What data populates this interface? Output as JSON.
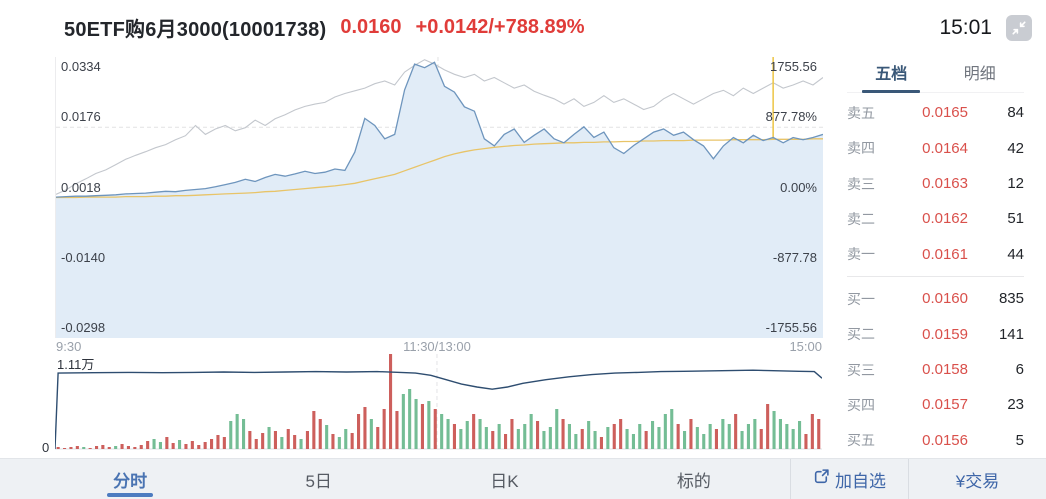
{
  "header": {
    "title": "50ETF购6月3000(10001738)",
    "price": "0.0160",
    "change": "+0.0142/+788.89%",
    "time": "15:01"
  },
  "colors": {
    "header_red": "#e03c39",
    "book_red": "#d9504b",
    "link_blue": "#3e66a8",
    "active_tab_blue": "#4a74b2",
    "book_tab_dark": "#3a5878"
  },
  "order_book": {
    "tabs": [
      {
        "label": "五档"
      },
      {
        "label": "明细"
      }
    ],
    "sell_rows": [
      {
        "label": "卖五",
        "price": "0.0165",
        "qty": "84"
      },
      {
        "label": "卖四",
        "price": "0.0164",
        "qty": "42"
      },
      {
        "label": "卖三",
        "price": "0.0163",
        "qty": "12"
      },
      {
        "label": "卖二",
        "price": "0.0162",
        "qty": "51"
      },
      {
        "label": "卖一",
        "price": "0.0161",
        "qty": "44"
      }
    ],
    "buy_rows": [
      {
        "label": "买一",
        "price": "0.0160",
        "qty": "835"
      },
      {
        "label": "买二",
        "price": "0.0159",
        "qty": "141"
      },
      {
        "label": "买三",
        "price": "0.0158",
        "qty": "6"
      },
      {
        "label": "买四",
        "price": "0.0157",
        "qty": "23"
      },
      {
        "label": "买五",
        "price": "0.0156",
        "qty": "5"
      }
    ]
  },
  "bottom_bar": {
    "tabs": [
      "分时",
      "5日",
      "日K",
      "标的"
    ],
    "add_watchlist": "加自选",
    "trade": "¥交易"
  },
  "chart_data": [
    {
      "type": "line",
      "title": "分时 intraday chart",
      "x_ticks": [
        "9:30",
        "11:30/13:00",
        "15:00"
      ],
      "left_axis": [
        "0.0334",
        "0.0176",
        "0.0018",
        "-0.0140",
        "-0.0298"
      ],
      "right_axis": [
        "1755.56",
        "877.78%",
        "0.00%",
        "-877.78",
        "-1755.56"
      ],
      "ylim": [
        -0.0298,
        0.0334
      ],
      "mid_tick_frac": 0.498,
      "grid": true,
      "marker_line": {
        "x_frac": 0.935,
        "color": "#edc84f"
      },
      "series": [
        {
          "name": "option-price",
          "color": "#6e95bd",
          "fill": "#e1ecf7",
          "values": [
            0.0019,
            0.002,
            0.0021,
            0.0021,
            0.0022,
            0.0023,
            0.0024,
            0.0026,
            0.0027,
            0.0028,
            0.003,
            0.0032,
            0.0031,
            0.0034,
            0.0036,
            0.0038,
            0.0042,
            0.0047,
            0.0052,
            0.0059,
            0.0054,
            0.0063,
            0.007,
            0.0066,
            0.0071,
            0.0077,
            0.0072,
            0.0075,
            0.0082,
            0.0079,
            0.012,
            0.0196,
            0.018,
            0.015,
            0.016,
            0.026,
            0.0318,
            0.031,
            0.0322,
            0.0268,
            0.0255,
            0.0222,
            0.0212,
            0.015,
            0.0134,
            0.016,
            0.0172,
            0.0142,
            0.0158,
            0.0172,
            0.015,
            0.0141,
            0.016,
            0.0177,
            0.0153,
            0.0165,
            0.013,
            0.0117,
            0.0135,
            0.015,
            0.0165,
            0.0172,
            0.0158,
            0.0165,
            0.0148,
            0.0134,
            0.0105,
            0.0134,
            0.0153,
            0.0141,
            0.0158,
            0.0146,
            0.0153,
            0.0141,
            0.0153,
            0.0148,
            0.0153,
            0.016
          ]
        },
        {
          "name": "average-price",
          "color": "#e8c468",
          "values": [
            0.0018,
            0.0018,
            0.0018,
            0.0019,
            0.0019,
            0.0019,
            0.0019,
            0.002,
            0.002,
            0.002,
            0.0021,
            0.0021,
            0.0022,
            0.0022,
            0.0023,
            0.0024,
            0.0025,
            0.0026,
            0.0027,
            0.0028,
            0.0029,
            0.0031,
            0.0032,
            0.0034,
            0.0036,
            0.0038,
            0.004,
            0.0042,
            0.0044,
            0.0047,
            0.005,
            0.0055,
            0.006,
            0.0065,
            0.007,
            0.0078,
            0.0086,
            0.0094,
            0.0102,
            0.011,
            0.0116,
            0.0121,
            0.0125,
            0.0128,
            0.0131,
            0.0133,
            0.0135,
            0.0136,
            0.0138,
            0.0139,
            0.014,
            0.0141,
            0.0141,
            0.0142,
            0.0142,
            0.0143,
            0.0143,
            0.0144,
            0.0144,
            0.0145,
            0.0145,
            0.0146,
            0.0146,
            0.0146,
            0.0147,
            0.0147,
            0.0147,
            0.0147,
            0.0148,
            0.0148,
            0.0148,
            0.0148,
            0.0149,
            0.0149,
            0.0149,
            0.0149,
            0.015,
            0.015
          ]
        },
        {
          "name": "underlying",
          "color": "#c3c7cd",
          "values": [
            0.0025,
            0.0035,
            0.0049,
            0.006,
            0.0072,
            0.008,
            0.0092,
            0.0104,
            0.0113,
            0.0121,
            0.013,
            0.0137,
            0.0148,
            0.0157,
            0.018,
            0.016,
            0.0172,
            0.018,
            0.0168,
            0.0175,
            0.0192,
            0.018,
            0.0195,
            0.0204,
            0.0215,
            0.0223,
            0.0228,
            0.0232,
            0.0244,
            0.0252,
            0.0258,
            0.0264,
            0.0274,
            0.028,
            0.0271,
            0.03,
            0.0315,
            0.0328,
            0.0318,
            0.0305,
            0.0295,
            0.0288,
            0.0295,
            0.028,
            0.0288,
            0.0276,
            0.0264,
            0.0271,
            0.0257,
            0.0248,
            0.024,
            0.0228,
            0.024,
            0.0223,
            0.0232,
            0.0247,
            0.0232,
            0.024,
            0.0228,
            0.0216,
            0.0223,
            0.024,
            0.0252,
            0.024,
            0.0228,
            0.024,
            0.0252,
            0.0259,
            0.0247,
            0.0264,
            0.0252,
            0.0264,
            0.0276,
            0.0264,
            0.0271,
            0.028,
            0.0271,
            0.0288
          ]
        }
      ]
    },
    {
      "type": "bar",
      "title": "volume with open interest",
      "ymax_label": "1.11万",
      "ymin_label": "0",
      "mid_tick_frac": 0.498,
      "open_interest": {
        "color": "#2e4d70",
        "max": 1.11,
        "points": [
          [
            0,
            0
          ],
          [
            0.004,
            1.04
          ],
          [
            0.05,
            1.045
          ],
          [
            0.1,
            1.05
          ],
          [
            0.14,
            1.045
          ],
          [
            0.18,
            1.05
          ],
          [
            0.22,
            1.055
          ],
          [
            0.26,
            1.05
          ],
          [
            0.3,
            1.055
          ],
          [
            0.34,
            1.06
          ],
          [
            0.38,
            1.055
          ],
          [
            0.42,
            1.06
          ],
          [
            0.45,
            1.05
          ],
          [
            0.47,
            1.04
          ],
          [
            0.49,
            1.01
          ],
          [
            0.51,
            0.95
          ],
          [
            0.53,
            0.89
          ],
          [
            0.55,
            0.85
          ],
          [
            0.57,
            0.82
          ],
          [
            0.59,
            0.85
          ],
          [
            0.61,
            0.9
          ],
          [
            0.64,
            0.95
          ],
          [
            0.67,
            0.99
          ],
          [
            0.7,
            1.02
          ],
          [
            0.73,
            1.04
          ],
          [
            0.76,
            1.05
          ],
          [
            0.79,
            1.06
          ],
          [
            0.82,
            1.065
          ],
          [
            0.85,
            1.07
          ],
          [
            0.88,
            1.075
          ],
          [
            0.91,
            1.08
          ],
          [
            0.93,
            1.075
          ],
          [
            0.95,
            1.07
          ],
          [
            0.97,
            1.065
          ],
          [
            0.99,
            1.06
          ],
          [
            1.0,
            0.97
          ]
        ]
      },
      "bars": {
        "up_color": "#74bd95",
        "down_color": "#cd5f5c",
        "values": [
          [
            2,
            "r"
          ],
          [
            1,
            "r"
          ],
          [
            2,
            "r"
          ],
          [
            3,
            "r"
          ],
          [
            2,
            "g"
          ],
          [
            1,
            "r"
          ],
          [
            3,
            "r"
          ],
          [
            4,
            "r"
          ],
          [
            2,
            "r"
          ],
          [
            3,
            "g"
          ],
          [
            5,
            "r"
          ],
          [
            3,
            "r"
          ],
          [
            2,
            "r"
          ],
          [
            4,
            "r"
          ],
          [
            8,
            "r"
          ],
          [
            10,
            "g"
          ],
          [
            7,
            "g"
          ],
          [
            12,
            "r"
          ],
          [
            6,
            "r"
          ],
          [
            9,
            "g"
          ],
          [
            5,
            "r"
          ],
          [
            8,
            "r"
          ],
          [
            4,
            "r"
          ],
          [
            7,
            "r"
          ],
          [
            10,
            "r"
          ],
          [
            14,
            "r"
          ],
          [
            12,
            "r"
          ],
          [
            28,
            "g"
          ],
          [
            35,
            "g"
          ],
          [
            30,
            "g"
          ],
          [
            18,
            "r"
          ],
          [
            10,
            "r"
          ],
          [
            16,
            "r"
          ],
          [
            22,
            "g"
          ],
          [
            18,
            "r"
          ],
          [
            12,
            "g"
          ],
          [
            20,
            "r"
          ],
          [
            14,
            "r"
          ],
          [
            10,
            "g"
          ],
          [
            18,
            "r"
          ],
          [
            38,
            "r"
          ],
          [
            30,
            "r"
          ],
          [
            24,
            "g"
          ],
          [
            15,
            "r"
          ],
          [
            12,
            "g"
          ],
          [
            20,
            "g"
          ],
          [
            16,
            "r"
          ],
          [
            35,
            "r"
          ],
          [
            42,
            "r"
          ],
          [
            30,
            "g"
          ],
          [
            22,
            "r"
          ],
          [
            40,
            "r"
          ],
          [
            95,
            "r"
          ],
          [
            38,
            "r"
          ],
          [
            55,
            "g"
          ],
          [
            60,
            "g"
          ],
          [
            50,
            "g"
          ],
          [
            45,
            "r"
          ],
          [
            48,
            "g"
          ],
          [
            40,
            "r"
          ],
          [
            35,
            "g"
          ],
          [
            30,
            "g"
          ],
          [
            25,
            "r"
          ],
          [
            20,
            "g"
          ],
          [
            28,
            "g"
          ],
          [
            35,
            "r"
          ],
          [
            30,
            "g"
          ],
          [
            22,
            "g"
          ],
          [
            18,
            "r"
          ],
          [
            25,
            "g"
          ],
          [
            15,
            "r"
          ],
          [
            30,
            "r"
          ],
          [
            20,
            "g"
          ],
          [
            25,
            "g"
          ],
          [
            35,
            "g"
          ],
          [
            28,
            "r"
          ],
          [
            18,
            "g"
          ],
          [
            22,
            "g"
          ],
          [
            40,
            "g"
          ],
          [
            30,
            "r"
          ],
          [
            25,
            "g"
          ],
          [
            15,
            "g"
          ],
          [
            20,
            "r"
          ],
          [
            28,
            "g"
          ],
          [
            18,
            "g"
          ],
          [
            12,
            "r"
          ],
          [
            22,
            "g"
          ],
          [
            25,
            "r"
          ],
          [
            30,
            "r"
          ],
          [
            20,
            "g"
          ],
          [
            15,
            "g"
          ],
          [
            25,
            "g"
          ],
          [
            18,
            "r"
          ],
          [
            28,
            "g"
          ],
          [
            22,
            "g"
          ],
          [
            35,
            "g"
          ],
          [
            40,
            "g"
          ],
          [
            25,
            "r"
          ],
          [
            18,
            "g"
          ],
          [
            30,
            "r"
          ],
          [
            22,
            "g"
          ],
          [
            15,
            "g"
          ],
          [
            25,
            "g"
          ],
          [
            20,
            "r"
          ],
          [
            30,
            "g"
          ],
          [
            25,
            "g"
          ],
          [
            35,
            "r"
          ],
          [
            18,
            "g"
          ],
          [
            25,
            "g"
          ],
          [
            30,
            "g"
          ],
          [
            20,
            "r"
          ],
          [
            45,
            "r"
          ],
          [
            38,
            "g"
          ],
          [
            30,
            "g"
          ],
          [
            25,
            "g"
          ],
          [
            20,
            "g"
          ],
          [
            28,
            "g"
          ],
          [
            15,
            "r"
          ],
          [
            35,
            "r"
          ],
          [
            30,
            "r"
          ]
        ]
      }
    }
  ]
}
